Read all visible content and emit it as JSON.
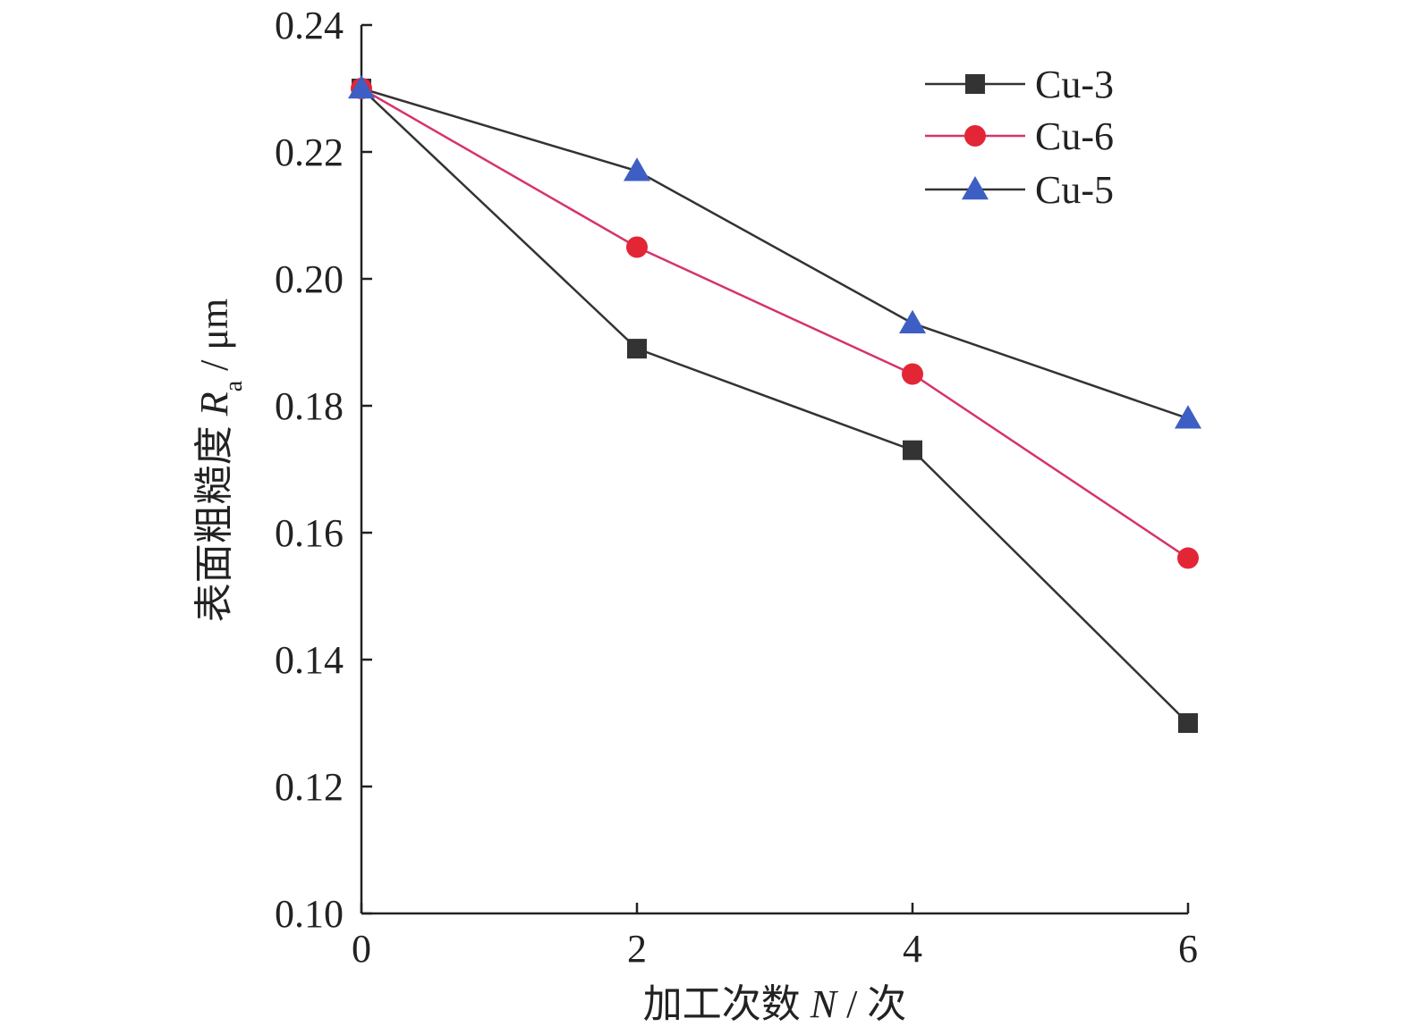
{
  "chart_data": {
    "type": "line",
    "x": [
      0,
      2,
      4,
      6
    ],
    "xlabel": {
      "prefix": "加工次数 ",
      "var": "N",
      "suffix": " / 次"
    },
    "ylabel": {
      "prefix": "表面粗糙度 ",
      "var": "R",
      "sub": "a",
      "suffix": " / μm"
    },
    "xlim": [
      0,
      6
    ],
    "ylim": [
      0.1,
      0.24
    ],
    "xticks": [
      0,
      2,
      4,
      6
    ],
    "xtick_labels": [
      "0",
      "2",
      "4",
      "6"
    ],
    "yticks": [
      0.1,
      0.12,
      0.14,
      0.16,
      0.18,
      0.2,
      0.22,
      0.24
    ],
    "ytick_labels": [
      "0.10",
      "0.12",
      "0.14",
      "0.16",
      "0.18",
      "0.20",
      "0.22",
      "0.24"
    ],
    "grid": false,
    "legend_position": "top-right",
    "series": [
      {
        "name": "Cu-3",
        "marker": "square",
        "line_color": "#333333",
        "marker_color": "#333333",
        "values": [
          0.23,
          0.189,
          0.173,
          0.13
        ]
      },
      {
        "name": "Cu-6",
        "marker": "circle",
        "line_color": "#d6336c",
        "marker_color": "#e32636",
        "values": [
          0.23,
          0.205,
          0.185,
          0.156
        ]
      },
      {
        "name": "Cu-5",
        "marker": "triangle",
        "line_color": "#333333",
        "marker_color": "#3d5fc4",
        "values": [
          0.23,
          0.217,
          0.193,
          0.178
        ]
      }
    ]
  }
}
